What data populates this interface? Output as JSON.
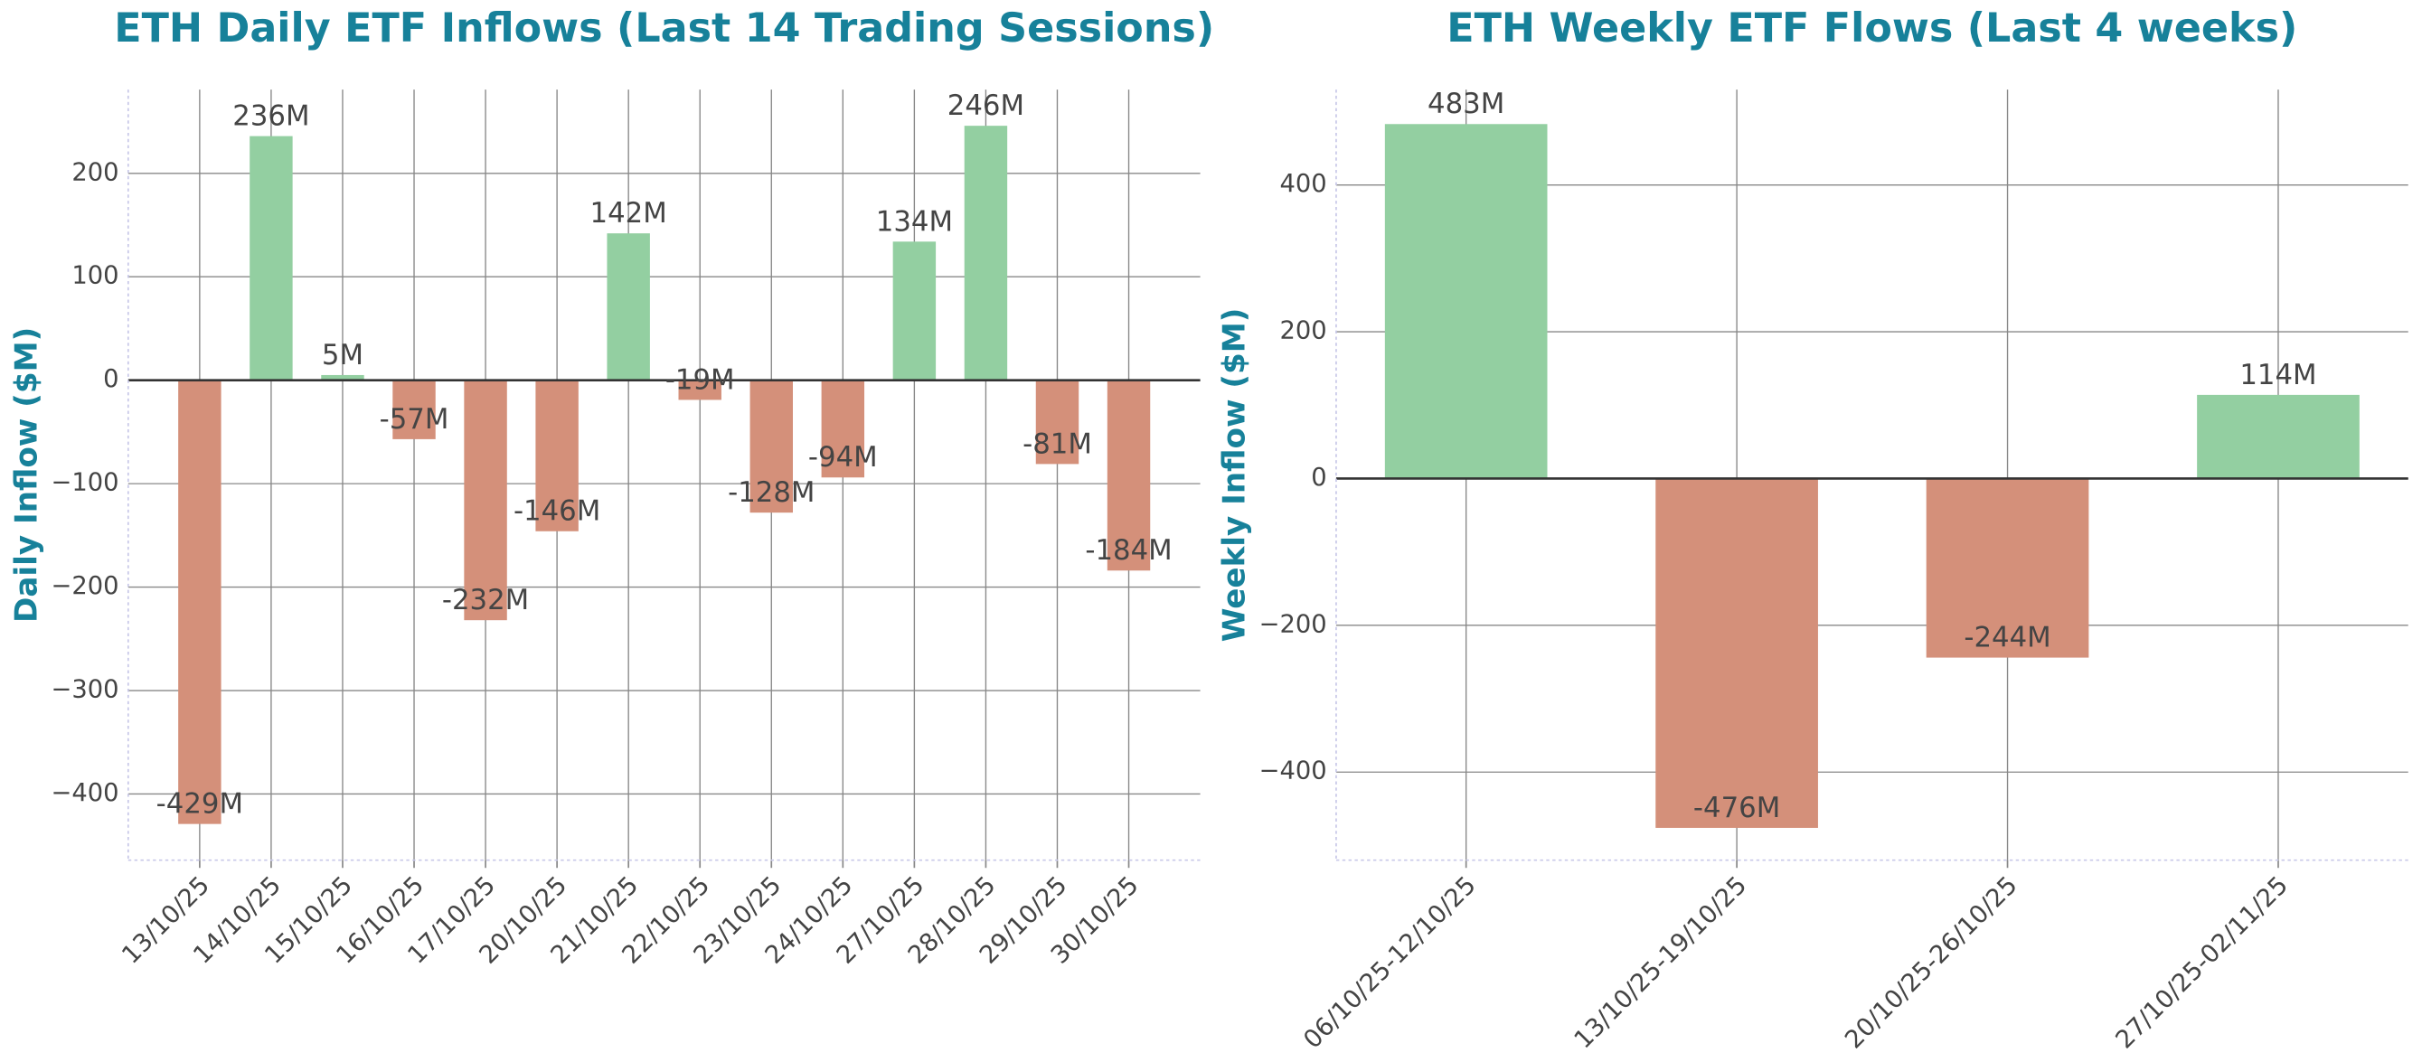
{
  "chart_data": [
    {
      "type": "bar",
      "title": "ETH Daily ETF Inflows (Last 14 Trading Sessions)",
      "y_label": "Daily Inflow ($M)",
      "categories": [
        "13/10/25",
        "14/10/25",
        "15/10/25",
        "16/10/25",
        "17/10/25",
        "20/10/25",
        "21/10/25",
        "22/10/25",
        "23/10/25",
        "24/10/25",
        "27/10/25",
        "28/10/25",
        "29/10/25",
        "30/10/25"
      ],
      "values": [
        -429,
        236,
        5,
        -57,
        -232,
        -146,
        142,
        -19,
        -128,
        -94,
        134,
        246,
        -81,
        -184
      ],
      "value_labels": [
        "-429M",
        "236M",
        "5M",
        "-57M",
        "-232M",
        "-146M",
        "142M",
        "-19M",
        "-128M",
        "-94M",
        "134M",
        "246M",
        "-81M",
        "-184M"
      ],
      "positive_color": "#93cfa1",
      "negative_color": "#d4907a",
      "ylim": [
        -464,
        281
      ],
      "yticks": [
        {
          "value": -400,
          "label": "−400"
        },
        {
          "value": -300,
          "label": "−300"
        },
        {
          "value": -200,
          "label": "−200"
        },
        {
          "value": -100,
          "label": "−100"
        },
        0,
        100,
        200
      ],
      "grid": true
    },
    {
      "type": "bar",
      "title": "ETH Weekly ETF Flows (Last 4 weeks)",
      "y_label": "Weekly Inflow ($M)",
      "categories": [
        "06/10/25-12/10/25",
        "13/10/25-19/10/25",
        "20/10/25-26/10/25",
        "27/10/25-02/11/25"
      ],
      "values": [
        483,
        -476,
        -244,
        114
      ],
      "value_labels": [
        "483M",
        "-476M",
        "-244M",
        "114M"
      ],
      "positive_color": "#93cfa1",
      "negative_color": "#d4907a",
      "ylim": [
        -520,
        530
      ],
      "yticks": [
        {
          "value": -400,
          "label": "−400"
        },
        {
          "value": -200,
          "label": "−200"
        },
        0,
        200,
        400
      ],
      "grid": true
    }
  ]
}
